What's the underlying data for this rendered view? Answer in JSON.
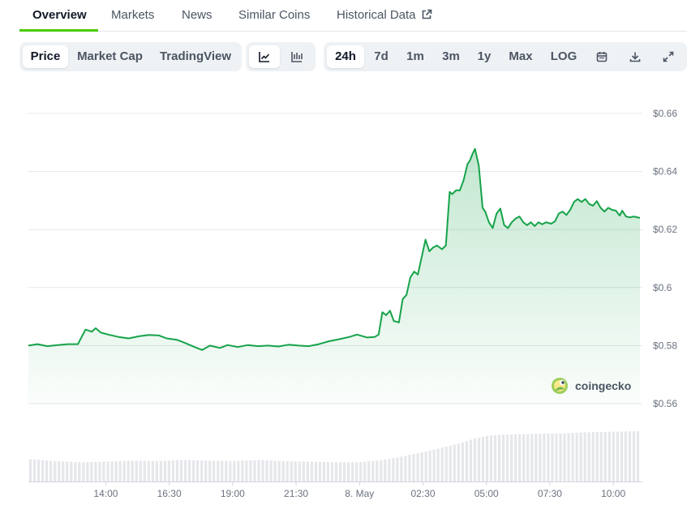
{
  "nav": {
    "tabs": [
      {
        "label": "Overview",
        "active": true
      },
      {
        "label": "Markets"
      },
      {
        "label": "News"
      },
      {
        "label": "Similar Coins"
      },
      {
        "label": "Historical Data",
        "external": true
      }
    ]
  },
  "toolbar": {
    "data_type": [
      "Price",
      "Market Cap",
      "TradingView"
    ],
    "data_type_selected": "Price",
    "chart_style_icons": [
      "line-chart-icon",
      "candlestick-chart-icon"
    ],
    "chart_style_selected": "line-chart-icon",
    "ranges": [
      "24h",
      "7d",
      "1m",
      "3m",
      "1y",
      "Max",
      "LOG"
    ],
    "range_selected": "24h",
    "action_icons": [
      "calendar-icon",
      "download-icon",
      "fullscreen-icon"
    ]
  },
  "watermark": {
    "text": "coingecko"
  },
  "colors": {
    "line": "#16a34a",
    "fill_top": "#16a34a",
    "active_tab_underline": "#4bcc00",
    "volume": "#e5e7eb",
    "grid": "#e5e7eb"
  },
  "chart_data": {
    "type": "area",
    "title": "",
    "xlabel": "",
    "ylabel": "",
    "y_ticks": [
      "$0.56",
      "$0.58",
      "$0.6",
      "$0.62",
      "$0.64",
      "$0.66"
    ],
    "ylim": [
      0.56,
      0.66
    ],
    "grid": true,
    "x_ticks": [
      "14:00",
      "16:30",
      "19:00",
      "21:30",
      "8. May",
      "02:30",
      "05:00",
      "07:30",
      "10:00"
    ],
    "x_tick_hours": [
      14.0,
      16.5,
      19.0,
      21.5,
      24.0,
      26.5,
      29.0,
      31.5,
      34.0
    ],
    "xlim_hours": [
      10.95,
      35.05
    ],
    "series": [
      {
        "values_by_hour": [
          [
            10.95,
            0.58
          ],
          [
            11.3,
            0.5805
          ],
          [
            11.7,
            0.5798
          ],
          [
            12.1,
            0.5802
          ],
          [
            12.5,
            0.5805
          ],
          [
            12.9,
            0.5805
          ],
          [
            13.2,
            0.5855
          ],
          [
            13.45,
            0.5848
          ],
          [
            13.6,
            0.586
          ],
          [
            13.8,
            0.5845
          ],
          [
            14.1,
            0.5838
          ],
          [
            14.5,
            0.583
          ],
          [
            14.9,
            0.5825
          ],
          [
            15.3,
            0.5832
          ],
          [
            15.7,
            0.5837
          ],
          [
            16.1,
            0.5835
          ],
          [
            16.4,
            0.5825
          ],
          [
            16.8,
            0.582
          ],
          [
            17.1,
            0.581
          ],
          [
            17.5,
            0.5795
          ],
          [
            17.8,
            0.5785
          ],
          [
            18.1,
            0.58
          ],
          [
            18.5,
            0.5792
          ],
          [
            18.8,
            0.5802
          ],
          [
            19.2,
            0.5795
          ],
          [
            19.6,
            0.5802
          ],
          [
            20.0,
            0.5798
          ],
          [
            20.4,
            0.58
          ],
          [
            20.8,
            0.5797
          ],
          [
            21.2,
            0.5803
          ],
          [
            21.6,
            0.58
          ],
          [
            22.0,
            0.5798
          ],
          [
            22.4,
            0.5805
          ],
          [
            22.8,
            0.5815
          ],
          [
            23.2,
            0.5822
          ],
          [
            23.6,
            0.583
          ],
          [
            23.9,
            0.5838
          ],
          [
            24.3,
            0.5828
          ],
          [
            24.6,
            0.583
          ],
          [
            24.75,
            0.5838
          ],
          [
            24.9,
            0.5915
          ],
          [
            25.05,
            0.5905
          ],
          [
            25.2,
            0.592
          ],
          [
            25.35,
            0.5885
          ],
          [
            25.55,
            0.588
          ],
          [
            25.7,
            0.596
          ],
          [
            25.85,
            0.5975
          ],
          [
            26.0,
            0.6035
          ],
          [
            26.15,
            0.6055
          ],
          [
            26.3,
            0.6045
          ],
          [
            26.45,
            0.6105
          ],
          [
            26.6,
            0.6165
          ],
          [
            26.75,
            0.6125
          ],
          [
            26.9,
            0.6138
          ],
          [
            27.05,
            0.6145
          ],
          [
            27.25,
            0.6132
          ],
          [
            27.4,
            0.6145
          ],
          [
            27.55,
            0.633
          ],
          [
            27.65,
            0.6322
          ],
          [
            27.8,
            0.6335
          ],
          [
            27.95,
            0.6335
          ],
          [
            28.1,
            0.637
          ],
          [
            28.25,
            0.6425
          ],
          [
            28.35,
            0.6438
          ],
          [
            28.45,
            0.646
          ],
          [
            28.55,
            0.6478
          ],
          [
            28.7,
            0.642
          ],
          [
            28.85,
            0.6275
          ],
          [
            28.95,
            0.6262
          ],
          [
            29.1,
            0.6225
          ],
          [
            29.25,
            0.6205
          ],
          [
            29.4,
            0.6255
          ],
          [
            29.55,
            0.6272
          ],
          [
            29.7,
            0.6215
          ],
          [
            29.85,
            0.6205
          ],
          [
            30.0,
            0.6225
          ],
          [
            30.15,
            0.6238
          ],
          [
            30.3,
            0.6245
          ],
          [
            30.45,
            0.6225
          ],
          [
            30.6,
            0.6215
          ],
          [
            30.75,
            0.6225
          ],
          [
            30.9,
            0.6212
          ],
          [
            31.05,
            0.6225
          ],
          [
            31.2,
            0.6218
          ],
          [
            31.35,
            0.6225
          ],
          [
            31.55,
            0.622
          ],
          [
            31.7,
            0.6228
          ],
          [
            31.85,
            0.6255
          ],
          [
            32.0,
            0.6262
          ],
          [
            32.15,
            0.625
          ],
          [
            32.3,
            0.6268
          ],
          [
            32.45,
            0.6295
          ],
          [
            32.6,
            0.6305
          ],
          [
            32.75,
            0.6295
          ],
          [
            32.9,
            0.6305
          ],
          [
            33.05,
            0.6288
          ],
          [
            33.2,
            0.6282
          ],
          [
            33.35,
            0.6298
          ],
          [
            33.5,
            0.6275
          ],
          [
            33.65,
            0.6262
          ],
          [
            33.8,
            0.6275
          ],
          [
            33.95,
            0.6268
          ],
          [
            34.1,
            0.6265
          ],
          [
            34.25,
            0.6248
          ],
          [
            34.35,
            0.6265
          ],
          [
            34.5,
            0.6245
          ],
          [
            34.65,
            0.6242
          ],
          [
            34.8,
            0.6245
          ],
          [
            35.05,
            0.624
          ]
        ]
      }
    ],
    "volume_relative_by_hour": [
      [
        10.95,
        0.42
      ],
      [
        12.0,
        0.38
      ],
      [
        13.0,
        0.36
      ],
      [
        14.0,
        0.37
      ],
      [
        15.0,
        0.39
      ],
      [
        16.0,
        0.38
      ],
      [
        17.0,
        0.4
      ],
      [
        18.0,
        0.39
      ],
      [
        19.0,
        0.38
      ],
      [
        20.0,
        0.4
      ],
      [
        21.0,
        0.38
      ],
      [
        22.0,
        0.37
      ],
      [
        23.0,
        0.36
      ],
      [
        24.0,
        0.36
      ],
      [
        24.9,
        0.4
      ],
      [
        25.5,
        0.45
      ],
      [
        26.0,
        0.5
      ],
      [
        26.5,
        0.55
      ],
      [
        27.0,
        0.6
      ],
      [
        27.5,
        0.66
      ],
      [
        28.0,
        0.72
      ],
      [
        28.5,
        0.8
      ],
      [
        29.0,
        0.85
      ],
      [
        29.5,
        0.87
      ],
      [
        30.0,
        0.88
      ],
      [
        31.0,
        0.89
      ],
      [
        32.0,
        0.9
      ],
      [
        33.0,
        0.92
      ],
      [
        34.0,
        0.93
      ],
      [
        35.05,
        0.94
      ]
    ]
  }
}
